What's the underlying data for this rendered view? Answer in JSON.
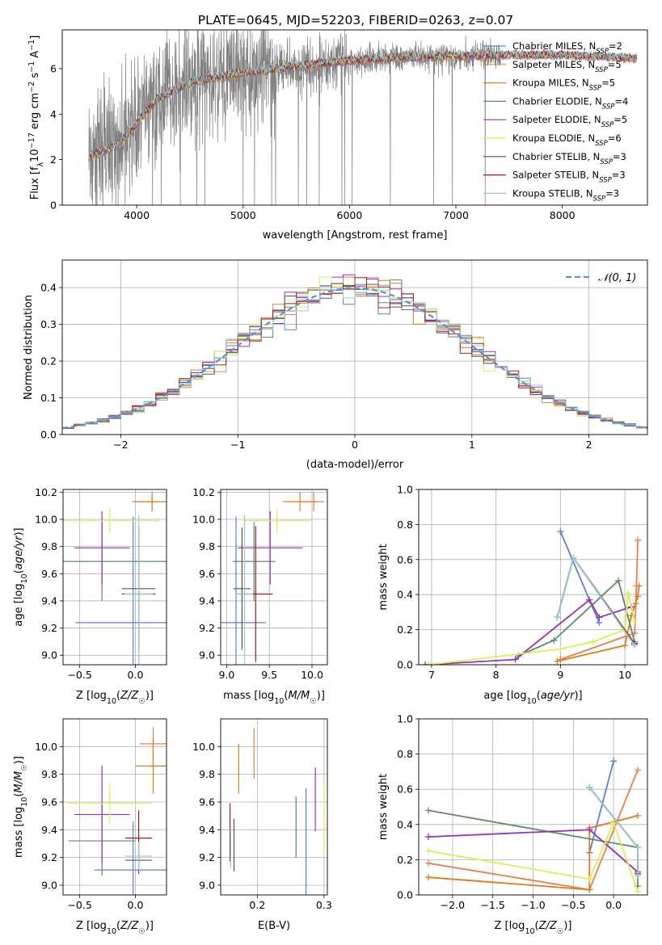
{
  "figure": {
    "title": "PLATE=0645, MJD=52203, FIBERID=0263, z=0.07"
  },
  "colors": {
    "Chabrier MILES": "#5b7fd9",
    "Salpeter MILES": "#e8804a",
    "Kroupa MILES": "#e07a1f",
    "Chabrier ELODIE": "#5e8a6a",
    "Salpeter ELODIE": "#9b30b8",
    "Kroupa ELODIE": "#d8ef55",
    "Chabrier STELIB": "#555555",
    "Salpeter STELIB": "#b01818",
    "Kroupa STELIB": "#8fd0d8",
    "data": "#808080",
    "normal": "#5b8fd9"
  },
  "chart_data": [
    {
      "id": "spectrum",
      "type": "line",
      "title": "PLATE=0645, MJD=52203, FIBERID=0263, z=0.07",
      "xlabel": "wavelength [Angstrom, rest frame]",
      "ylabel": "Flux [f_λ 10^-17 erg cm^-2 s^-1 A^-1]",
      "xlim": [
        3300,
        8800
      ],
      "ylim": [
        0,
        7.7
      ],
      "xticks": [
        4000,
        5000,
        6000,
        7000,
        8000
      ],
      "yticks": [
        0,
        2,
        4,
        6
      ],
      "legend_position": "right",
      "legend": [
        {
          "name": "Chabrier MILES",
          "nssp": "2"
        },
        {
          "name": "Salpeter MILES",
          "nssp": "5"
        },
        {
          "name": "Kroupa MILES",
          "nssp": "5"
        },
        {
          "name": "Chabrier ELODIE",
          "nssp": "4"
        },
        {
          "name": "Salpeter ELODIE",
          "nssp": "5"
        },
        {
          "name": "Kroupa ELODIE",
          "nssp": "6"
        },
        {
          "name": "Chabrier STELIB",
          "nssp": "3"
        },
        {
          "name": "Salpeter STELIB",
          "nssp": "3"
        },
        {
          "name": "Kroupa STELIB",
          "nssp": "3"
        }
      ],
      "continuum": {
        "x": [
          3550,
          3700,
          3850,
          4000,
          4200,
          4500,
          5000,
          5500,
          6000,
          6500,
          7000,
          7500,
          8000,
          8500,
          8650
        ],
        "y": [
          2.1,
          2.4,
          2.7,
          3.6,
          4.7,
          5.4,
          5.8,
          6.1,
          6.35,
          6.5,
          6.55,
          6.6,
          6.6,
          6.5,
          6.45
        ]
      },
      "data_range": [
        3550,
        7420
      ]
    },
    {
      "id": "residuals",
      "type": "histogram",
      "xlabel": "(data-model)/error",
      "ylabel": "Normed distribution",
      "xlim": [
        -2.5,
        2.5
      ],
      "ylim": [
        0,
        0.475
      ],
      "xticks": [
        -2,
        -1,
        0,
        1,
        2
      ],
      "yticks": [
        0.0,
        0.1,
        0.2,
        0.3,
        0.4
      ],
      "normal_label": "𝒩(0, 1)",
      "legend_position": "top-right",
      "bin_width": 0.1
    },
    {
      "id": "age_vs_Z",
      "type": "errorbar",
      "xlabel": "Z [log10(Z/Z☉)]",
      "ylabel": "age [log10(age/yr)]",
      "xlim": [
        -0.65,
        0.28
      ],
      "ylim": [
        8.93,
        10.22
      ],
      "xticks": [
        -0.5,
        0.0
      ],
      "yticks": [
        9.0,
        9.2,
        9.4,
        9.6,
        9.8,
        10.0,
        10.2
      ],
      "points": [
        {
          "model": "Chabrier MILES",
          "x": -0.02,
          "xerr": 0.52,
          "y": 9.24,
          "yerr": 0.78
        },
        {
          "model": "Salpeter MILES",
          "x": 0.15,
          "xerr": 0.07,
          "y": 10.13,
          "yerr": 0.07
        },
        {
          "model": "Kroupa MILES",
          "x": 0.15,
          "xerr": 0.18,
          "y": 10.13,
          "yerr": 0.07
        },
        {
          "model": "Chabrier ELODIE",
          "x": -0.3,
          "xerr": 0.58,
          "y": 9.69,
          "yerr": 0.29
        },
        {
          "model": "Salpeter ELODIE",
          "x": -0.3,
          "xerr": 0.25,
          "y": 9.79,
          "yerr": 0.27
        },
        {
          "model": "Kroupa ELODIE",
          "x": -0.23,
          "xerr": 0.45,
          "y": 9.99,
          "yerr": 0.09
        },
        {
          "model": "Chabrier STELIB",
          "x": 0.03,
          "xerr": 0.15,
          "y": 9.49,
          "yerr": 0.45
        },
        {
          "model": "Salpeter STELIB",
          "x": 0.03,
          "xerr": 0.15,
          "y": 9.45,
          "yerr": 0.5
        },
        {
          "model": "Kroupa STELIB",
          "x": 0.03,
          "xerr": 0.13,
          "y": 9.45,
          "yerr": 0.58
        }
      ]
    },
    {
      "id": "age_vs_mass",
      "type": "errorbar",
      "xlabel": "mass [log10(M/M☉)]",
      "ylabel": "",
      "xlim": [
        8.93,
        10.18
      ],
      "ylim": [
        8.93,
        10.22
      ],
      "xticks": [
        9.0,
        9.5,
        10.0
      ],
      "yticks": [
        9.0,
        9.2,
        9.4,
        9.6,
        9.8,
        10.0,
        10.2
      ],
      "points": [
        {
          "model": "Chabrier MILES",
          "x": 9.11,
          "xerr": 0.35,
          "y": 9.24,
          "yerr": 0.78
        },
        {
          "model": "Salpeter MILES",
          "x": 10.02,
          "xerr": 0.12,
          "y": 10.13,
          "yerr": 0.07
        },
        {
          "model": "Kroupa MILES",
          "x": 9.86,
          "xerr": 0.2,
          "y": 10.13,
          "yerr": 0.07
        },
        {
          "model": "Chabrier ELODIE",
          "x": 9.32,
          "xerr": 0.25,
          "y": 9.69,
          "yerr": 0.29
        },
        {
          "model": "Salpeter ELODIE",
          "x": 9.51,
          "xerr": 0.38,
          "y": 9.79,
          "yerr": 0.27
        },
        {
          "model": "Kroupa ELODIE",
          "x": 9.59,
          "xerr": 0.4,
          "y": 9.99,
          "yerr": 0.09
        },
        {
          "model": "Chabrier STELIB",
          "x": 9.18,
          "xerr": 0.1,
          "y": 9.49,
          "yerr": 0.45
        },
        {
          "model": "Salpeter STELIB",
          "x": 9.34,
          "xerr": 0.2,
          "y": 9.45,
          "yerr": 0.5
        },
        {
          "model": "Kroupa STELIB",
          "x": 9.21,
          "xerr": 0.1,
          "y": 9.45,
          "yerr": 0.58
        }
      ]
    },
    {
      "id": "weight_vs_age",
      "type": "line",
      "xlabel": "age [log10(age/yr)]",
      "ylabel": "mass weight",
      "xlim": [
        6.8,
        10.35
      ],
      "ylim": [
        0,
        1
      ],
      "xticks": [
        7,
        8,
        9,
        10
      ],
      "yticks": [
        0.0,
        0.2,
        0.4,
        0.6,
        0.8,
        1.0
      ],
      "series": [
        {
          "model": "Chabrier MILES",
          "x": [
            9.0,
            9.6
          ],
          "y": [
            0.76,
            0.24
          ]
        },
        {
          "model": "Salpeter MILES",
          "x": [
            9.0,
            10.15,
            10.17,
            10.18,
            10.2
          ],
          "y": [
            0.03,
            0.18,
            0.35,
            0.45,
            0.71
          ]
        },
        {
          "model": "Kroupa MILES",
          "x": [
            8.95,
            10.0,
            10.1,
            10.2,
            10.22
          ],
          "y": [
            0.02,
            0.11,
            0.28,
            0.39,
            0.45
          ]
        },
        {
          "model": "Chabrier ELODIE",
          "x": [
            8.35,
            8.9,
            9.9,
            10.15
          ],
          "y": [
            0.05,
            0.14,
            0.48,
            0.13
          ]
        },
        {
          "model": "Salpeter ELODIE",
          "x": [
            6.9,
            8.3,
            9.45,
            9.6,
            10.1
          ],
          "y": [
            0.0,
            0.03,
            0.37,
            0.27,
            0.33
          ]
        },
        {
          "model": "Kroupa ELODIE",
          "x": [
            6.95,
            9.0,
            9.5,
            10.0,
            10.05,
            10.15
          ],
          "y": [
            0.0,
            0.09,
            0.13,
            0.2,
            0.41,
            0.25
          ]
        },
        {
          "model": "Chabrier STELIB",
          "x": [
            8.95,
            9.2,
            10.15
          ],
          "y": [
            0.27,
            0.61,
            0.12
          ]
        },
        {
          "model": "Salpeter STELIB",
          "x": [
            8.95,
            9.2,
            10.15
          ],
          "y": [
            0.27,
            0.61,
            0.12
          ]
        },
        {
          "model": "Kroupa STELIB",
          "x": [
            8.95,
            9.2,
            10.15
          ],
          "y": [
            0.27,
            0.61,
            0.11
          ]
        }
      ]
    },
    {
      "id": "mass_vs_Z",
      "type": "errorbar",
      "xlabel": "Z [log10(Z/Z☉)]",
      "ylabel": "mass [log10(M/M☉)]",
      "xlim": [
        -0.65,
        0.28
      ],
      "ylim": [
        8.93,
        10.2
      ],
      "xticks": [
        -0.5,
        0.0
      ],
      "yticks": [
        9.0,
        9.2,
        9.4,
        9.6,
        9.8,
        10.0
      ],
      "points": [
        {
          "model": "Chabrier MILES",
          "x": -0.02,
          "xerr": 0.35,
          "y": 9.11,
          "yerr": 0.35
        },
        {
          "model": "Salpeter MILES",
          "x": 0.16,
          "xerr": 0.12,
          "y": 10.02,
          "yerr": 0.12
        },
        {
          "model": "Kroupa MILES",
          "x": 0.16,
          "xerr": 0.16,
          "y": 9.86,
          "yerr": 0.2
        },
        {
          "model": "Chabrier ELODIE",
          "x": -0.3,
          "xerr": 0.3,
          "y": 9.32,
          "yerr": 0.25
        },
        {
          "model": "Salpeter ELODIE",
          "x": -0.3,
          "xerr": 0.25,
          "y": 9.51,
          "yerr": 0.35
        },
        {
          "model": "Kroupa ELODIE",
          "x": -0.23,
          "xerr": 0.38,
          "y": 9.59,
          "yerr": 0.15
        },
        {
          "model": "Chabrier STELIB",
          "x": 0.03,
          "xerr": 0.12,
          "y": 9.18,
          "yerr": 0.1
        },
        {
          "model": "Salpeter STELIB",
          "x": 0.03,
          "xerr": 0.12,
          "y": 9.34,
          "yerr": 0.2
        },
        {
          "model": "Kroupa STELIB",
          "x": 0.03,
          "xerr": 0.12,
          "y": 9.21,
          "yerr": 0.1
        }
      ]
    },
    {
      "id": "mass_vs_EBV",
      "type": "errorbar",
      "xlabel": "E(B-V)",
      "ylabel": "",
      "xlim": [
        0.145,
        0.305
      ],
      "ylim": [
        8.93,
        10.2
      ],
      "xticks": [
        0.2,
        0.3
      ],
      "yticks": [
        9.0,
        9.2,
        9.4,
        9.6,
        9.8,
        10.0
      ],
      "points": [
        {
          "model": "Chabrier MILES",
          "x": 0.273,
          "y": 9.24,
          "yerr": 0.46
        },
        {
          "model": "Salpeter MILES",
          "x": 0.195,
          "y": 9.95,
          "yerr": 0.18
        },
        {
          "model": "Kroupa MILES",
          "x": 0.172,
          "y": 9.84,
          "yerr": 0.18
        },
        {
          "model": "Chabrier ELODIE",
          "x": 0.258,
          "y": 9.42,
          "yerr": 0.22
        },
        {
          "model": "Salpeter ELODIE",
          "x": 0.287,
          "y": 9.62,
          "yerr": 0.23
        },
        {
          "model": "Kroupa ELODIE",
          "x": 0.3,
          "y": 9.48,
          "yerr": 0.26
        },
        {
          "model": "Chabrier STELIB",
          "x": 0.165,
          "y": 9.29,
          "yerr": 0.19
        },
        {
          "model": "Salpeter STELIB",
          "x": 0.159,
          "y": 9.38,
          "yerr": 0.21
        },
        {
          "model": "Kroupa STELIB",
          "x": 0.16,
          "y": 9.27,
          "yerr": 0.15
        }
      ]
    },
    {
      "id": "weight_vs_Z",
      "type": "line",
      "xlabel": "Z [log10(Z/Z☉)]",
      "ylabel": "mass weight",
      "xlim": [
        -2.42,
        0.42
      ],
      "ylim": [
        0,
        1
      ],
      "xticks": [
        -2.0,
        -1.5,
        -1.0,
        -0.5,
        0.0
      ],
      "yticks": [
        0.0,
        0.2,
        0.4,
        0.6,
        0.8,
        1.0
      ],
      "series": [
        {
          "model": "Chabrier MILES",
          "x": [
            0.0,
            -0.3
          ],
          "y": [
            0.76,
            0.24
          ]
        },
        {
          "model": "Salpeter MILES",
          "x": [
            -2.3,
            -0.3,
            0.3
          ],
          "y": [
            0.18,
            0.03,
            0.71
          ]
        },
        {
          "model": "Kroupa MILES",
          "x": [
            -2.3,
            -0.3,
            -0.3,
            0.3
          ],
          "y": [
            0.1,
            0.03,
            0.38,
            0.45
          ]
        },
        {
          "model": "Chabrier ELODIE",
          "x": [
            -2.3,
            0.3,
            0.3
          ],
          "y": [
            0.48,
            0.27,
            0.05
          ]
        },
        {
          "model": "Salpeter ELODIE",
          "x": [
            -2.3,
            -0.3,
            0.3
          ],
          "y": [
            0.33,
            0.37,
            0.13
          ]
        },
        {
          "model": "Kroupa ELODIE",
          "x": [
            -2.3,
            -0.3,
            0.0,
            0.3
          ],
          "y": [
            0.25,
            0.09,
            0.41,
            0.02
          ]
        },
        {
          "model": "Chabrier STELIB",
          "x": [
            -0.3,
            0.3,
            0.3
          ],
          "y": [
            0.61,
            0.27,
            0.12
          ]
        },
        {
          "model": "Salpeter STELIB",
          "x": [
            -0.3,
            0.3,
            0.3
          ],
          "y": [
            0.61,
            0.27,
            0.12
          ]
        },
        {
          "model": "Kroupa STELIB",
          "x": [
            -0.3,
            0.3,
            0.3
          ],
          "y": [
            0.61,
            0.27,
            0.11
          ]
        }
      ]
    }
  ]
}
